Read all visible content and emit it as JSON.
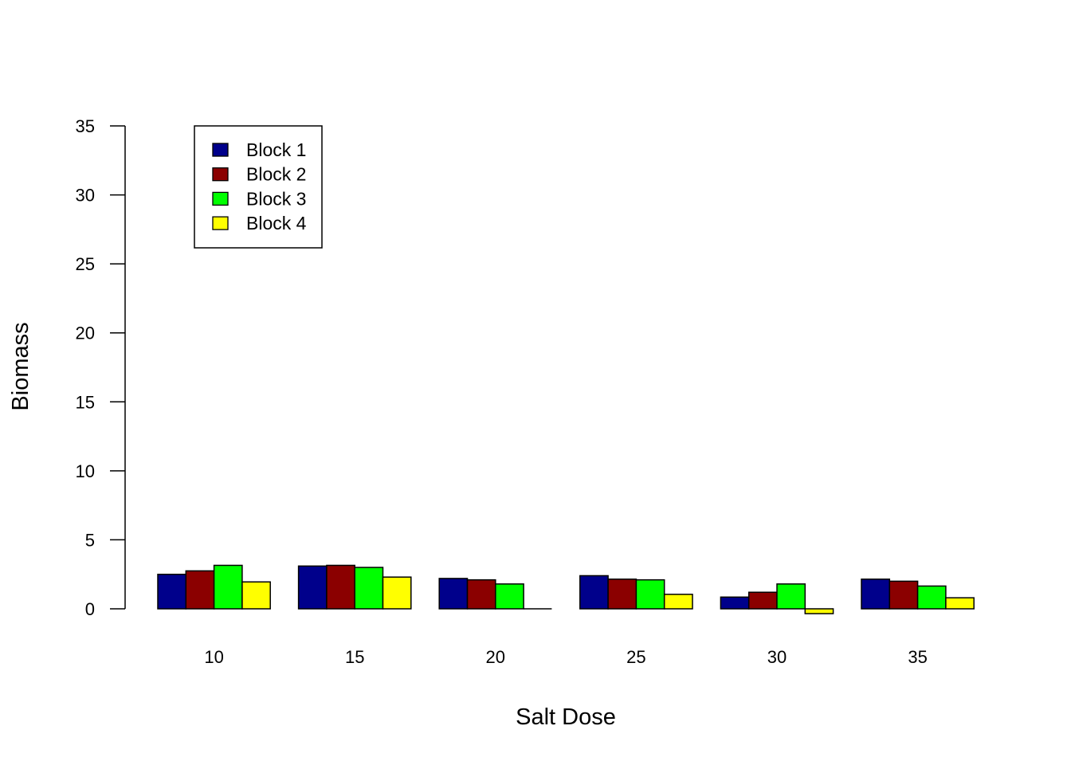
{
  "chart_data": {
    "type": "bar",
    "title": "",
    "xlabel": "Salt Dose",
    "ylabel": "Biomass",
    "categories": [
      "10",
      "15",
      "20",
      "25",
      "30",
      "35"
    ],
    "yticks": [
      0,
      5,
      10,
      15,
      20,
      25,
      30,
      35
    ],
    "ylim": [
      0,
      35
    ],
    "grid": false,
    "legend_position": "top-left",
    "series": [
      {
        "name": "Block 1",
        "color": "#00008B",
        "values": [
          2.5,
          3.1,
          2.2,
          2.4,
          0.85,
          2.15
        ]
      },
      {
        "name": "Block 2",
        "color": "#8B0000",
        "values": [
          2.75,
          3.15,
          2.1,
          2.15,
          1.2,
          2.0
        ]
      },
      {
        "name": "Block 3",
        "color": "#00FF00",
        "values": [
          3.15,
          3.0,
          1.8,
          2.1,
          1.8,
          1.65
        ]
      },
      {
        "name": "Block 4",
        "color": "#FFFF00",
        "values": [
          1.95,
          2.3,
          0.0,
          1.05,
          -0.35,
          0.8
        ]
      }
    ]
  }
}
